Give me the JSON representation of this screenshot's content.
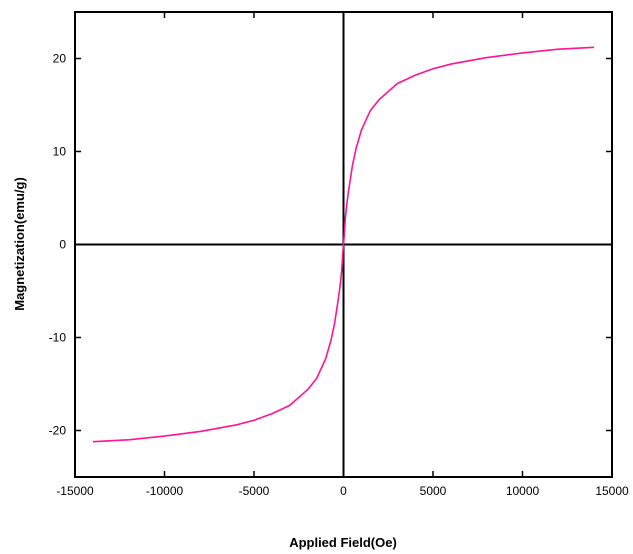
{
  "chart_data": {
    "type": "line",
    "title": "",
    "xlabel": "Applied Field(Oe)",
    "ylabel": "Magnetization(emu/g)",
    "xlim": [
      -15000,
      15000
    ],
    "ylim": [
      -25,
      25
    ],
    "xticks": [
      -15000,
      -10000,
      -5000,
      0,
      5000,
      10000,
      15000
    ],
    "yticks": [
      -20,
      -10,
      0,
      10,
      20
    ],
    "grid": false,
    "zero_lines": true,
    "series": [
      {
        "color": "#ff1493",
        "x": [
          -14000,
          -12000,
          -10000,
          -8000,
          -6000,
          -5000,
          -4000,
          -3000,
          -2000,
          -1500,
          -1000,
          -700,
          -500,
          -300,
          -200,
          -100,
          -50,
          0,
          50,
          100,
          200,
          300,
          500,
          700,
          1000,
          1500,
          2000,
          3000,
          4000,
          5000,
          6000,
          8000,
          10000,
          12000,
          14000
        ],
        "y": [
          -21.2,
          -21.0,
          -20.6,
          -20.1,
          -19.4,
          -18.9,
          -18.2,
          -17.3,
          -15.6,
          -14.4,
          -12.3,
          -10.3,
          -8.5,
          -6.0,
          -4.6,
          -2.8,
          -1.2,
          0,
          1.2,
          2.8,
          4.6,
          6.0,
          8.5,
          10.3,
          12.3,
          14.4,
          15.6,
          17.3,
          18.2,
          18.9,
          19.4,
          20.1,
          20.6,
          21.0,
          21.2
        ]
      }
    ]
  }
}
